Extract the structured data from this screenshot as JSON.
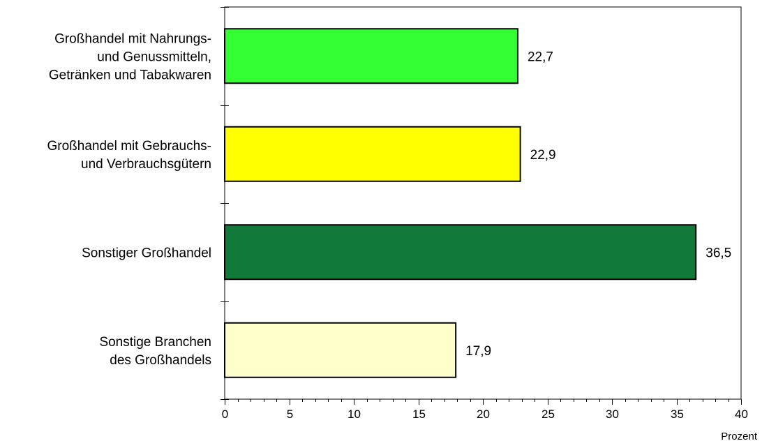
{
  "chart_data": {
    "type": "bar",
    "orientation": "horizontal",
    "categories": [
      [
        "Großhandel mit Nahrungs-",
        "und Genussmitteln,",
        "Getränken und Tabakwaren"
      ],
      [
        "Großhandel mit Gebrauchs-",
        "und Verbrauchsgütern"
      ],
      [
        "Sonstiger Großhandel"
      ],
      [
        "Sonstige Branchen",
        "des Großhandels"
      ]
    ],
    "values": [
      22.7,
      22.9,
      36.5,
      17.9
    ],
    "value_labels": [
      "22,7",
      "22,9",
      "36,5",
      "17,9"
    ],
    "colors": [
      "#33ff33",
      "#ffff00",
      "#117a3b",
      "#ffffcc"
    ],
    "xlabel": "Prozent",
    "xlim": [
      0,
      40
    ],
    "x_major_ticks": [
      0,
      5,
      10,
      15,
      20,
      25,
      30,
      35,
      40
    ],
    "x_tick_labels": [
      "0",
      "5",
      "10",
      "15",
      "20",
      "25",
      "30",
      "35",
      "40"
    ],
    "x_minor_step": 1,
    "grid": false,
    "legend": "none"
  }
}
